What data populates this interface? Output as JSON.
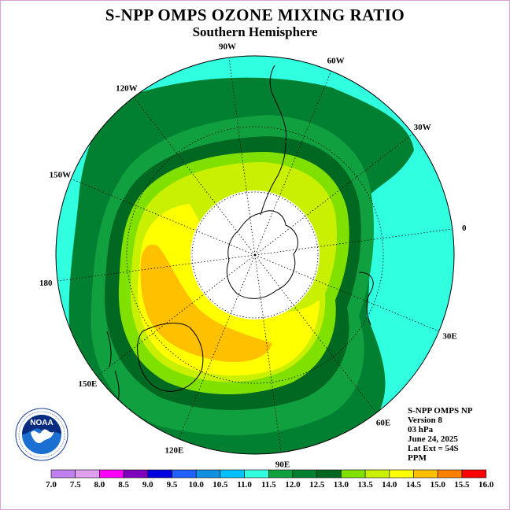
{
  "header": {
    "title": "S-NPP OMPS OZONE MIXING RATIO",
    "subtitle": "Southern Hemisphere"
  },
  "longitude_labels": [
    "90W",
    "60W",
    "30W",
    "0",
    "30E",
    "60E",
    "90E",
    "120E",
    "150E",
    "180",
    "150W",
    "120W"
  ],
  "info": {
    "line1": "S-NPP OMPS NP",
    "line2": "Version 8",
    "line3": "03 hPa",
    "line4": "June 24, 2025",
    "line5": "Lat Ext = 54S",
    "line6": "PPM"
  },
  "logo": {
    "text": "NOAA",
    "ring_text": "NATIONAL OCEANIC AND ATMOSPHERIC ADMINISTRATION · U.S. DEPARTMENT OF COMMERCE"
  },
  "colorbar": {
    "labels": [
      "7.0",
      "7.5",
      "8.0",
      "8.5",
      "9.0",
      "9.5",
      "10.0",
      "10.5",
      "11.0",
      "11.5",
      "12.0",
      "12.5",
      "13.0",
      "13.5",
      "14.0",
      "14.5",
      "15.0",
      "15.5",
      "16.0"
    ],
    "colors": [
      "#c080f0",
      "#e0a0f0",
      "#ff00ff",
      "#8000c0",
      "#0000e0",
      "#2060ff",
      "#1090e0",
      "#00c0ff",
      "#30ffe0",
      "#10a040",
      "#008030",
      "#006820",
      "#80e000",
      "#c8f000",
      "#ffff00",
      "#ffc000",
      "#ff8000",
      "#ff0000",
      "#8b5a3c"
    ]
  },
  "colors": {
    "cyan": "#30ffe0",
    "green_light": "#10a040",
    "green_mid": "#008030",
    "green_dark": "#006820",
    "lime": "#80e000",
    "yellowgreen": "#c8f000",
    "yellow": "#ffff00",
    "orange": "#ffc000",
    "polar_night": "#ffffff"
  }
}
